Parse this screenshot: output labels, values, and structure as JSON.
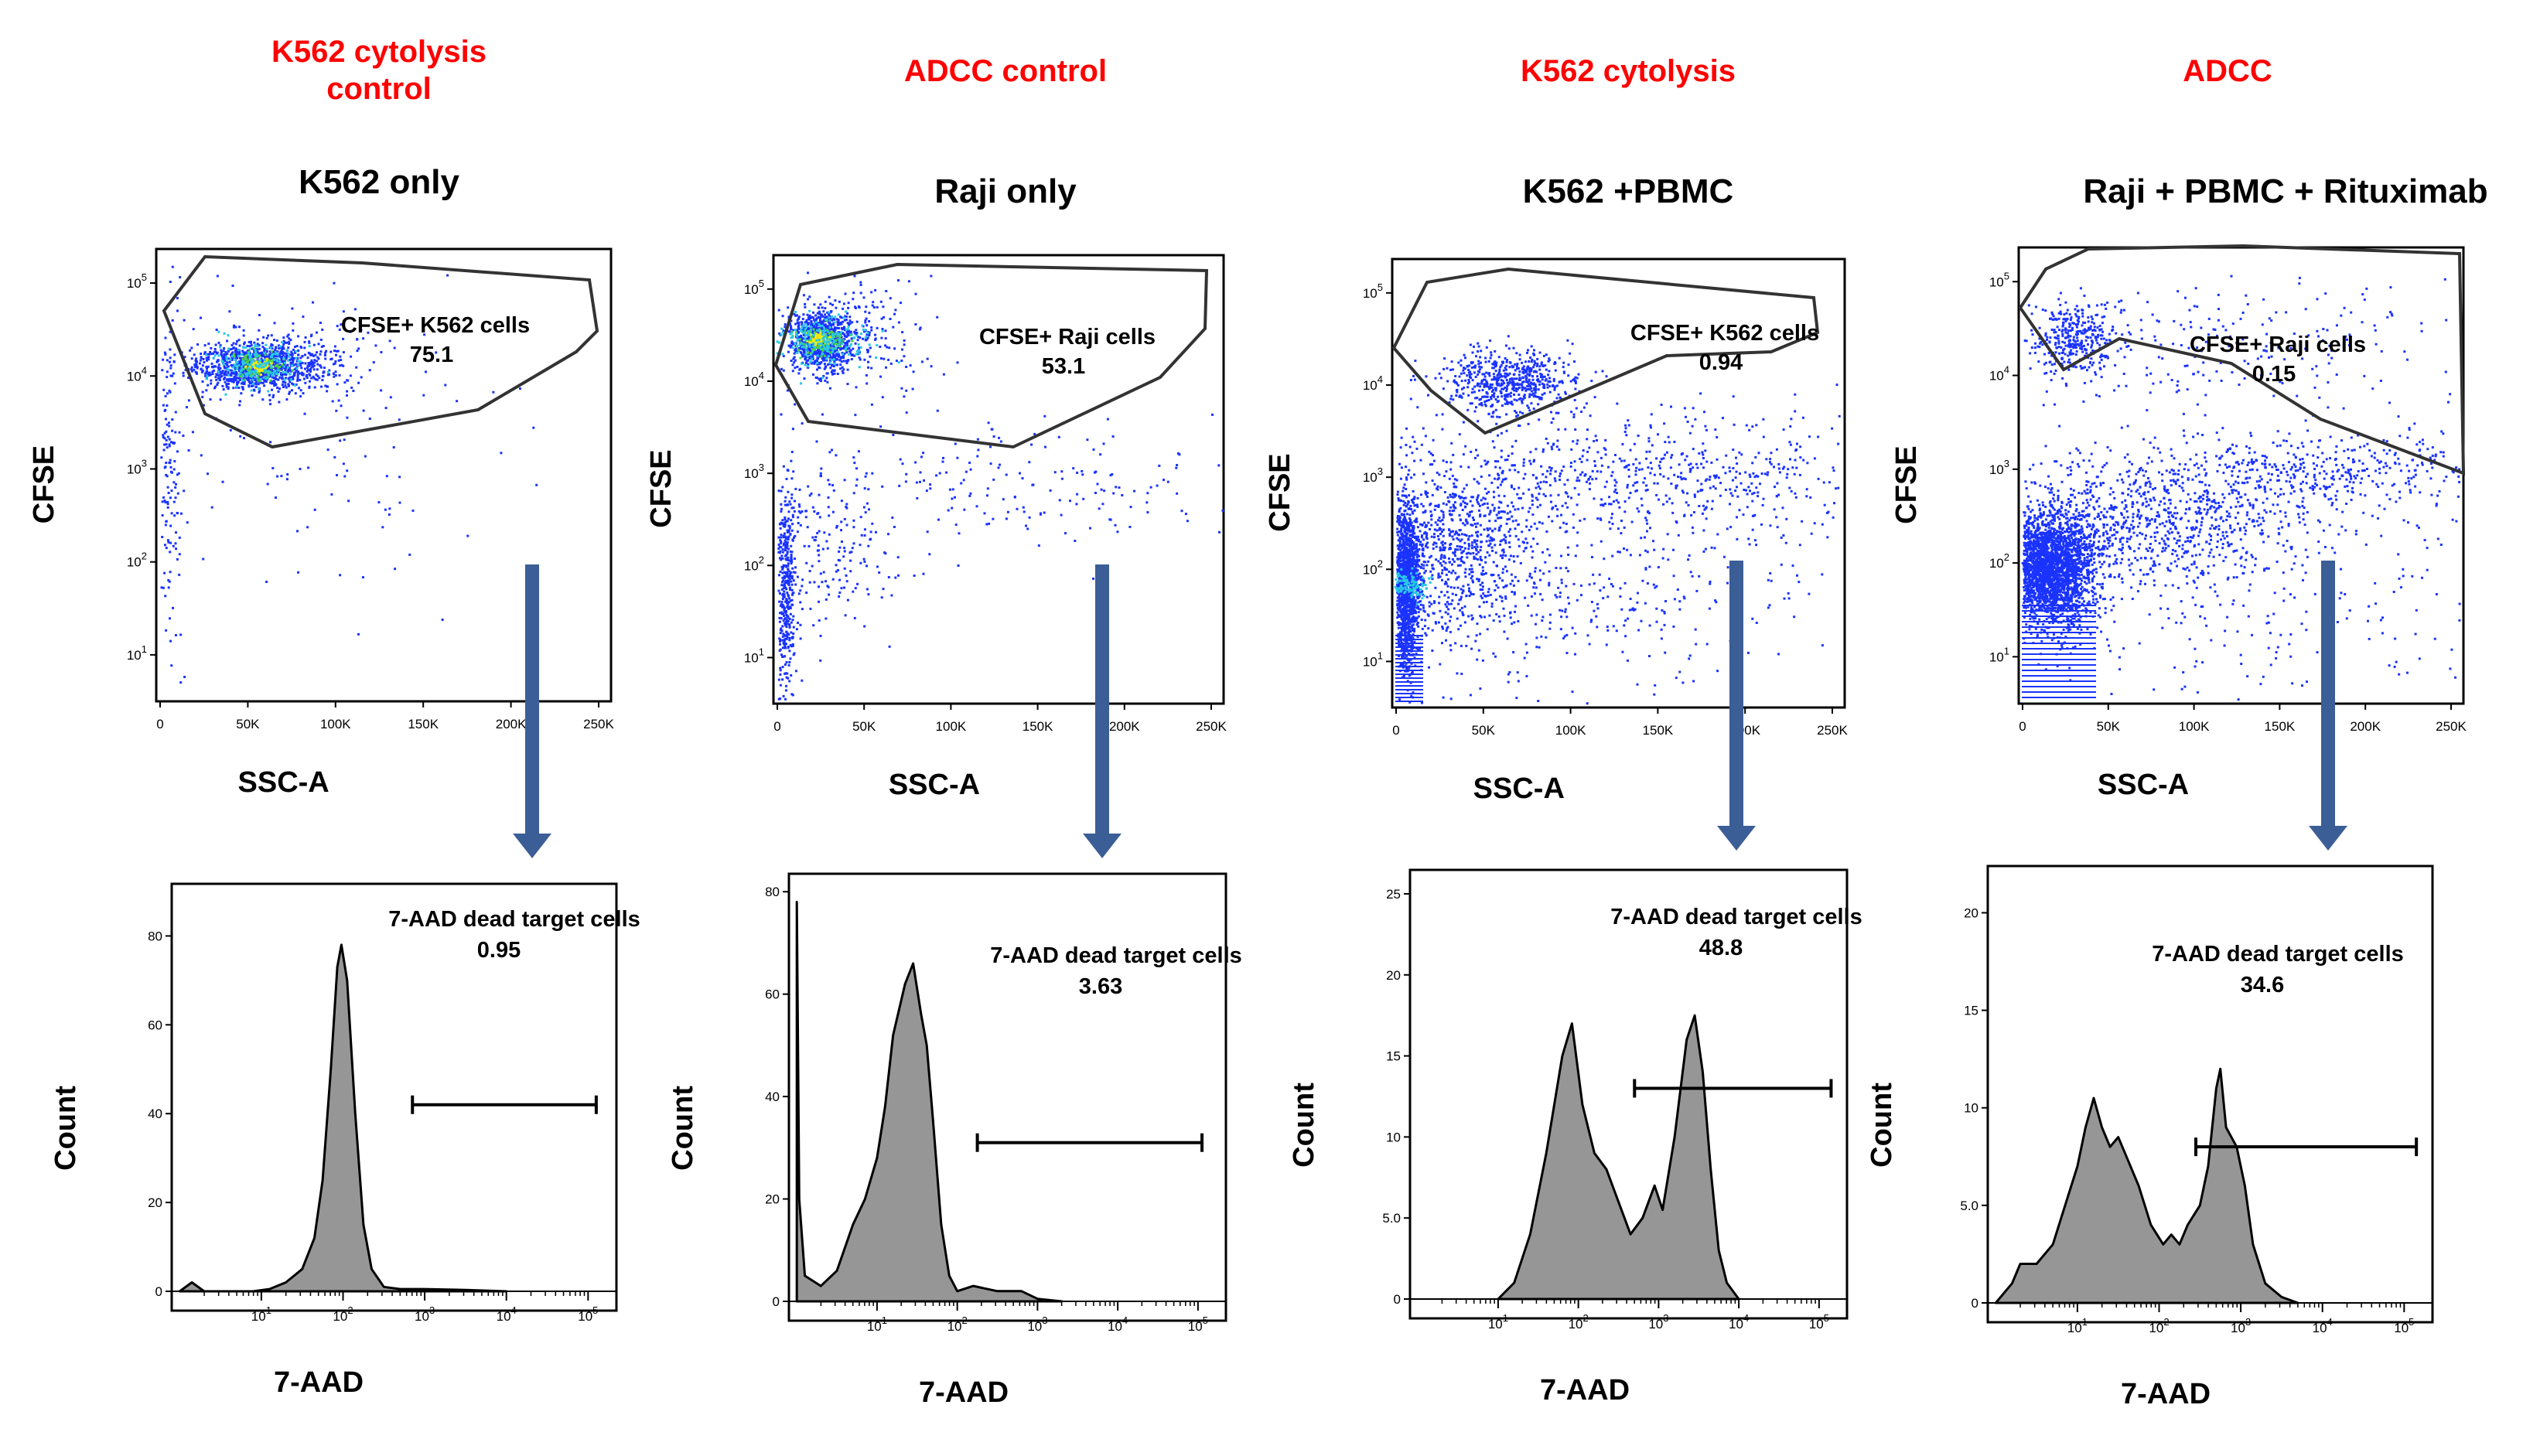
{
  "colors": {
    "condition": "#ff0000",
    "text": "#000000",
    "arrow": "#3c5e96",
    "histogram_fill": "#969696",
    "dots_blue": "#1a33ff",
    "dots_cyan": "#27c9e6",
    "dots_green": "#4cd13f",
    "dots_yellow": "#f2e90f"
  },
  "panels": [
    {
      "condition": "K562 cytolysis\ncontrol",
      "sample": "K562 only",
      "scatter": {
        "type": "scatter",
        "xlabel": "SSC-A",
        "ylabel": "CFSE",
        "x_ticks": [
          "0",
          "50K",
          "100K",
          "150K",
          "200K",
          "250K"
        ],
        "y_ticks": [
          "10^1",
          "10^2",
          "10^3",
          "10^4",
          "10^5"
        ],
        "gate_name": "CFSE+ K562 cells",
        "gate_value": "75.1"
      },
      "histogram": {
        "type": "area",
        "xlabel": "7-AAD",
        "ylabel": "Count",
        "y_ticks": [
          "0",
          "20",
          "40",
          "60",
          "80"
        ],
        "ylim": [
          0,
          90
        ],
        "x_ticks": [
          "10^1",
          "10^2",
          "10^3",
          "10^4",
          "10^5"
        ],
        "gate_name": "7-AAD dead target cells",
        "gate_value": "0.95",
        "gate_range": [
          2.85,
          5.1
        ],
        "gate_y": 42,
        "curve": [
          [
            0.0,
            0
          ],
          [
            0.15,
            2
          ],
          [
            0.3,
            0
          ],
          [
            0.5,
            0
          ],
          [
            0.9,
            0
          ],
          [
            1.1,
            0.5
          ],
          [
            1.3,
            2
          ],
          [
            1.5,
            5
          ],
          [
            1.65,
            12
          ],
          [
            1.75,
            25
          ],
          [
            1.85,
            50
          ],
          [
            1.93,
            73
          ],
          [
            1.98,
            78
          ],
          [
            2.05,
            70
          ],
          [
            2.15,
            40
          ],
          [
            2.25,
            15
          ],
          [
            2.35,
            5
          ],
          [
            2.5,
            1
          ],
          [
            2.7,
            0.5
          ],
          [
            3.0,
            0.5
          ],
          [
            3.5,
            0.3
          ],
          [
            4.0,
            0
          ]
        ]
      }
    },
    {
      "condition": "ADCC control",
      "sample": "Raji only",
      "scatter": {
        "type": "scatter",
        "xlabel": "SSC-A",
        "ylabel": "CFSE",
        "x_ticks": [
          "0",
          "50K",
          "100K",
          "150K",
          "200K",
          "250K"
        ],
        "y_ticks": [
          "10^1",
          "10^2",
          "10^3",
          "10^4",
          "10^5"
        ],
        "gate_name": "CFSE+ Raji cells",
        "gate_value": "53.1"
      },
      "histogram": {
        "type": "area",
        "xlabel": "7-AAD",
        "ylabel": "Count",
        "y_ticks": [
          "0",
          "20",
          "40",
          "60",
          "80"
        ],
        "ylim": [
          0,
          82
        ],
        "x_ticks": [
          "10^1",
          "10^2",
          "10^3",
          "10^4",
          "10^5"
        ],
        "gate_name": "7-AAD dead target cells",
        "gate_value": "3.63",
        "gate_range": [
          2.25,
          5.05
        ],
        "gate_y": 31,
        "curve": [
          [
            0.0,
            78
          ],
          [
            0.03,
            20
          ],
          [
            0.1,
            5
          ],
          [
            0.3,
            3
          ],
          [
            0.5,
            6
          ],
          [
            0.7,
            15
          ],
          [
            0.85,
            20
          ],
          [
            1.0,
            28
          ],
          [
            1.1,
            38
          ],
          [
            1.2,
            52
          ],
          [
            1.35,
            62
          ],
          [
            1.45,
            66
          ],
          [
            1.55,
            56
          ],
          [
            1.62,
            50
          ],
          [
            1.7,
            35
          ],
          [
            1.8,
            15
          ],
          [
            1.9,
            5
          ],
          [
            2.0,
            2
          ],
          [
            2.2,
            3
          ],
          [
            2.5,
            2
          ],
          [
            2.8,
            2
          ],
          [
            3.0,
            0.5
          ],
          [
            3.3,
            0
          ]
        ]
      }
    },
    {
      "condition": "K562 cytolysis",
      "sample": "K562 +PBMC",
      "scatter": {
        "type": "scatter",
        "xlabel": "SSC-A",
        "ylabel": "CFSE",
        "x_ticks": [
          "0",
          "50K",
          "100K",
          "150K",
          "200K",
          "250K"
        ],
        "y_ticks": [
          "10^1",
          "10^2",
          "10^3",
          "10^4",
          "10^5"
        ],
        "gate_name": "CFSE+ K562 cells",
        "gate_value": "0.94"
      },
      "histogram": {
        "type": "area",
        "xlabel": "7-AAD",
        "ylabel": "Count",
        "y_ticks": [
          "0",
          "5.0",
          "10",
          "15",
          "20",
          "25"
        ],
        "ylim": [
          0,
          26
        ],
        "x_ticks": [
          "10^1",
          "10^2",
          "10^3",
          "10^4",
          "10^5"
        ],
        "gate_name": "7-AAD dead target cells",
        "gate_value": "48.8",
        "gate_range": [
          2.7,
          5.15
        ],
        "gate_y": 13,
        "curve": [
          [
            1.0,
            0
          ],
          [
            1.2,
            1
          ],
          [
            1.4,
            4
          ],
          [
            1.6,
            9
          ],
          [
            1.8,
            15
          ],
          [
            1.92,
            17
          ],
          [
            2.05,
            12
          ],
          [
            2.2,
            9
          ],
          [
            2.35,
            8
          ],
          [
            2.5,
            6
          ],
          [
            2.65,
            4
          ],
          [
            2.8,
            5
          ],
          [
            2.95,
            7
          ],
          [
            3.05,
            5.5
          ],
          [
            3.2,
            10
          ],
          [
            3.35,
            16
          ],
          [
            3.45,
            17.5
          ],
          [
            3.55,
            14
          ],
          [
            3.65,
            8
          ],
          [
            3.75,
            3
          ],
          [
            3.85,
            1
          ],
          [
            4.0,
            0
          ]
        ]
      }
    },
    {
      "condition": "ADCC",
      "sample": "Raji + PBMC + Rituximab",
      "scatter": {
        "type": "scatter",
        "xlabel": "SSC-A",
        "ylabel": "CFSE",
        "x_ticks": [
          "0",
          "50K",
          "100K",
          "150K",
          "200K",
          "250K"
        ],
        "y_ticks": [
          "10^1",
          "10^2",
          "10^3",
          "10^4",
          "10^5"
        ],
        "gate_name": "CFSE+ Raji cells",
        "gate_value": "0.15"
      },
      "histogram": {
        "type": "area",
        "xlabel": "7-AAD",
        "ylabel": "Count",
        "y_ticks": [
          "0",
          "5.0",
          "10",
          "15",
          "20"
        ],
        "ylim": [
          0,
          22
        ],
        "x_ticks": [
          "10^1",
          "10^2",
          "10^3",
          "10^4",
          "10^5"
        ],
        "gate_name": "7-AAD dead target cells",
        "gate_value": "34.6",
        "gate_range": [
          2.45,
          5.15
        ],
        "gate_y": 8,
        "curve": [
          [
            0.0,
            0
          ],
          [
            0.1,
            0.5
          ],
          [
            0.2,
            1
          ],
          [
            0.3,
            2
          ],
          [
            0.5,
            2
          ],
          [
            0.7,
            3
          ],
          [
            0.85,
            5
          ],
          [
            1.0,
            7
          ],
          [
            1.1,
            9
          ],
          [
            1.2,
            10.5
          ],
          [
            1.3,
            9
          ],
          [
            1.4,
            8
          ],
          [
            1.5,
            8.5
          ],
          [
            1.6,
            7.5
          ],
          [
            1.75,
            6
          ],
          [
            1.9,
            4
          ],
          [
            2.05,
            3
          ],
          [
            2.15,
            3.5
          ],
          [
            2.25,
            3
          ],
          [
            2.35,
            4
          ],
          [
            2.5,
            5
          ],
          [
            2.6,
            7
          ],
          [
            2.7,
            11
          ],
          [
            2.75,
            12
          ],
          [
            2.82,
            9
          ],
          [
            2.95,
            8
          ],
          [
            3.05,
            6
          ],
          [
            3.15,
            3
          ],
          [
            3.3,
            1
          ],
          [
            3.5,
            0.3
          ],
          [
            3.7,
            0
          ]
        ]
      }
    }
  ]
}
